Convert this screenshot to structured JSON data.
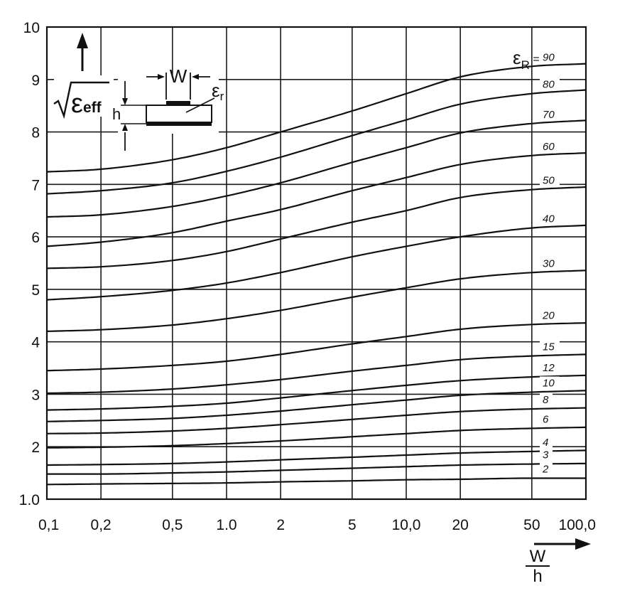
{
  "chart_data": {
    "type": "line",
    "title": "",
    "xlabel": "W/h",
    "ylabel": "√εeff",
    "x_scale": "log",
    "xlim": [
      0.1,
      100
    ],
    "ylim": [
      1.0,
      10
    ],
    "grid": true,
    "x_tick_labels": [
      "0,1",
      "0,2",
      "0,5",
      "1.0",
      "2",
      "5",
      "10,0",
      "20",
      "50",
      "100,0"
    ],
    "y_tick_labels": [
      "1.0",
      "2",
      "3",
      "4",
      "5",
      "6",
      "7",
      "8",
      "9",
      "10"
    ],
    "x_label_parts": {
      "numerator": "W",
      "denominator": "h"
    },
    "y_label_parts": {
      "sym": "ε",
      "sub": "eff"
    },
    "legend_title": {
      "sym": "ε",
      "sub": "R",
      "rest": " ="
    },
    "inset": {
      "w_label": "W",
      "h_label": "h",
      "eps_sym": "ε",
      "eps_sub": "r"
    },
    "x": [
      0.1,
      0.2,
      0.5,
      1,
      2,
      5,
      10,
      20,
      50,
      100
    ],
    "series": [
      {
        "name": "90",
        "values": [
          7.24,
          7.29,
          7.47,
          7.7,
          8.0,
          8.4,
          8.73,
          9.05,
          9.25,
          9.3
        ]
      },
      {
        "name": "80",
        "values": [
          6.82,
          6.88,
          7.03,
          7.25,
          7.52,
          7.93,
          8.23,
          8.53,
          8.73,
          8.8
        ]
      },
      {
        "name": "70",
        "values": [
          6.38,
          6.42,
          6.58,
          6.78,
          7.03,
          7.42,
          7.7,
          7.98,
          8.16,
          8.22
        ]
      },
      {
        "name": "60",
        "values": [
          5.82,
          5.9,
          6.08,
          6.3,
          6.52,
          6.88,
          7.13,
          7.38,
          7.55,
          7.6
        ]
      },
      {
        "name": "50",
        "values": [
          5.4,
          5.43,
          5.55,
          5.72,
          5.96,
          6.28,
          6.5,
          6.75,
          6.9,
          6.95
        ]
      },
      {
        "name": "40",
        "values": [
          4.8,
          4.86,
          4.98,
          5.12,
          5.32,
          5.62,
          5.82,
          6.0,
          6.17,
          6.22
        ]
      },
      {
        "name": "30",
        "values": [
          4.2,
          4.23,
          4.32,
          4.44,
          4.6,
          4.85,
          5.03,
          5.2,
          5.32,
          5.36
        ]
      },
      {
        "name": "20",
        "values": [
          3.45,
          3.48,
          3.55,
          3.63,
          3.76,
          3.96,
          4.1,
          4.24,
          4.33,
          4.36
        ]
      },
      {
        "name": "15",
        "values": [
          3.02,
          3.04,
          3.1,
          3.18,
          3.28,
          3.44,
          3.55,
          3.66,
          3.73,
          3.76
        ]
      },
      {
        "name": "12",
        "values": [
          2.7,
          2.72,
          2.77,
          2.83,
          2.93,
          3.07,
          3.17,
          3.26,
          3.33,
          3.36
        ]
      },
      {
        "name": "10",
        "values": [
          2.48,
          2.5,
          2.54,
          2.6,
          2.68,
          2.8,
          2.89,
          2.98,
          3.04,
          3.07
        ]
      },
      {
        "name": "8",
        "values": [
          2.25,
          2.26,
          2.3,
          2.35,
          2.42,
          2.52,
          2.6,
          2.67,
          2.72,
          2.74
        ]
      },
      {
        "name": "6",
        "values": [
          1.98,
          1.99,
          2.02,
          2.06,
          2.11,
          2.19,
          2.25,
          2.31,
          2.35,
          2.37
        ]
      },
      {
        "name": "4",
        "values": [
          1.65,
          1.66,
          1.68,
          1.71,
          1.75,
          1.8,
          1.84,
          1.88,
          1.91,
          1.93
        ]
      },
      {
        "name": "3",
        "values": [
          1.48,
          1.48,
          1.5,
          1.52,
          1.55,
          1.59,
          1.62,
          1.65,
          1.67,
          1.68
        ]
      },
      {
        "name": "2",
        "values": [
          1.28,
          1.29,
          1.3,
          1.31,
          1.33,
          1.35,
          1.37,
          1.38,
          1.4,
          1.4
        ]
      }
    ]
  }
}
